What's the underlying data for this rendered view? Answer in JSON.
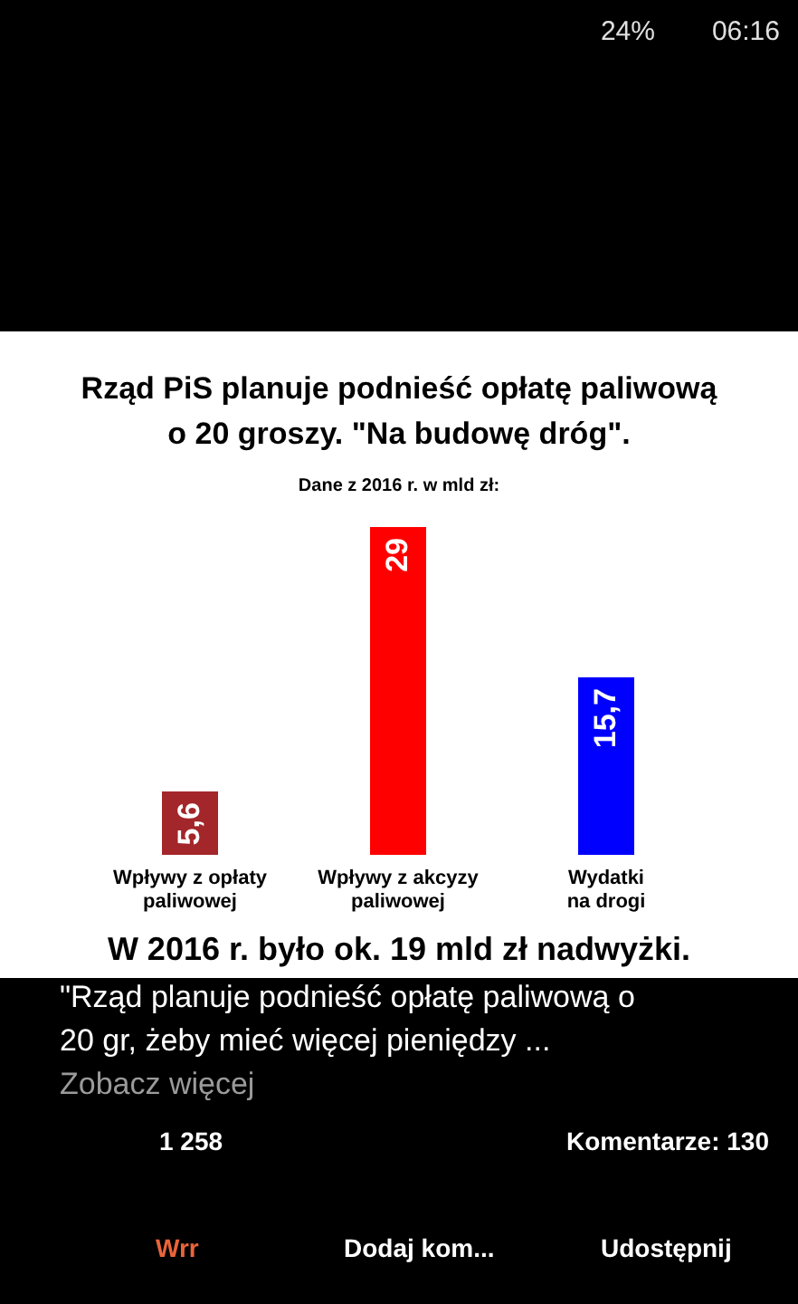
{
  "chart_data": {
    "type": "bar",
    "title": "Rząd PiS planuje podnieść opłatę paliwową o 20 groszy. \"Na budowę dróg\".",
    "subtitle": "Dane z 2016 r. w mld zł:",
    "categories": [
      "Wpływy z opłaty paliwowej",
      "Wpływy z akcyzy paliwowej",
      "Wydatki na drogi"
    ],
    "values": [
      5.6,
      29,
      15.7
    ],
    "colors": [
      "#a3262a",
      "#ff0000",
      "#0000ff"
    ],
    "value_labels": [
      "5,6",
      "29",
      "15,7"
    ],
    "annotations": [
      "24%",
      "06:16",
      "W 2016 r. było ok. 19 mld zł nadwyżki.",
      "\"Rząd planuje podnieść opłatę paliwową o 20 gr, żeby mieć więcej pieniędzy ...",
      "Zobacz więcej",
      "1 258",
      "Komentarze: 130",
      "Wrr",
      "Dodaj kom...",
      "Udostępnij"
    ]
  }
}
